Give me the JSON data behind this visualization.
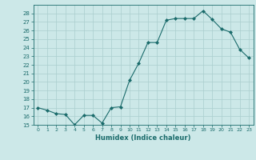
{
  "x": [
    0,
    1,
    2,
    3,
    4,
    5,
    6,
    7,
    8,
    9,
    10,
    11,
    12,
    13,
    14,
    15,
    16,
    17,
    18,
    19,
    20,
    21,
    22,
    23
  ],
  "y": [
    17,
    16.7,
    16.3,
    16.2,
    15,
    16.1,
    16.1,
    15.2,
    17,
    17.1,
    20.2,
    22.2,
    24.6,
    24.6,
    27.2,
    27.4,
    27.4,
    27.4,
    28.3,
    27.3,
    26.2,
    25.8,
    23.8,
    22.8
  ],
  "line_color": "#1a6b6b",
  "marker_color": "#1a6b6b",
  "bg_color": "#cce8e8",
  "grid_color": "#aacece",
  "xlabel": "Humidex (Indice chaleur)",
  "ylim": [
    15,
    29
  ],
  "xlim": [
    -0.5,
    23.5
  ],
  "yticks": [
    15,
    16,
    17,
    18,
    19,
    20,
    21,
    22,
    23,
    24,
    25,
    26,
    27,
    28
  ],
  "xticks": [
    0,
    1,
    2,
    3,
    4,
    5,
    6,
    7,
    8,
    9,
    10,
    11,
    12,
    13,
    14,
    15,
    16,
    17,
    18,
    19,
    20,
    21,
    22,
    23
  ]
}
